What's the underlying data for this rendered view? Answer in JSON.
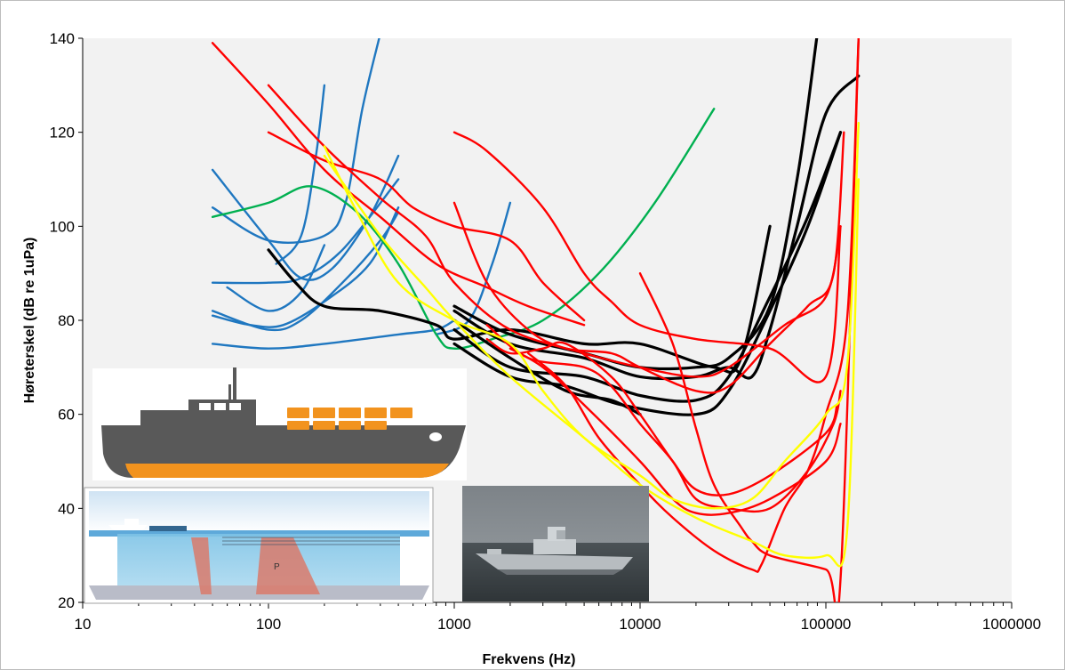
{
  "chart_data": {
    "type": "line",
    "title": "",
    "xlabel": "Frekvens (Hz)",
    "ylabel": "Høreterskel (dB re 1uPa)",
    "x_scale": "log",
    "xlim": [
      10,
      1000000
    ],
    "ylim": [
      20,
      140
    ],
    "grid": false,
    "legend": "none",
    "background": "#f2f2f2",
    "x_ticks": [
      {
        "value": 10,
        "label": "10"
      },
      {
        "value": 100,
        "label": "100"
      },
      {
        "value": 1000,
        "label": "1000"
      },
      {
        "value": 10000,
        "label": "10000"
      },
      {
        "value": 100000,
        "label": "100000"
      },
      {
        "value": 1000000,
        "label": "1000000"
      }
    ],
    "y_ticks": [
      {
        "value": 20,
        "label": "20"
      },
      {
        "value": 40,
        "label": "40"
      },
      {
        "value": 60,
        "label": "60"
      },
      {
        "value": 80,
        "label": "80"
      },
      {
        "value": 100,
        "label": "100"
      },
      {
        "value": 120,
        "label": "120"
      },
      {
        "value": 140,
        "label": "140"
      }
    ],
    "colors": {
      "black": "#000000",
      "red": "#ff0000",
      "blue": "#1f77c0",
      "green": "#00b050",
      "yellow": "#ffff00"
    },
    "series": [
      {
        "color": "blue",
        "points": [
          [
            50,
            75
          ],
          [
            100,
            74
          ],
          [
            200,
            75
          ],
          [
            500,
            77
          ],
          [
            800,
            78
          ],
          [
            1000,
            80
          ]
        ]
      },
      {
        "color": "blue",
        "points": [
          [
            50,
            81
          ],
          [
            80,
            79
          ],
          [
            120,
            79
          ],
          [
            200,
            84
          ],
          [
            350,
            92
          ],
          [
            500,
            104
          ]
        ]
      },
      {
        "color": "blue",
        "points": [
          [
            50,
            82
          ],
          [
            100,
            78
          ],
          [
            150,
            80
          ],
          [
            250,
            88
          ],
          [
            400,
            97
          ],
          [
            500,
            103
          ]
        ]
      },
      {
        "color": "blue",
        "points": [
          [
            50,
            88
          ],
          [
            100,
            88
          ],
          [
            150,
            89
          ],
          [
            250,
            95
          ],
          [
            500,
            110
          ]
        ]
      },
      {
        "color": "blue",
        "points": [
          [
            50,
            112
          ],
          [
            100,
            97
          ],
          [
            150,
            89
          ],
          [
            220,
            91
          ],
          [
            350,
            102
          ],
          [
            500,
            115
          ]
        ]
      },
      {
        "color": "blue",
        "points": [
          [
            50,
            104
          ],
          [
            100,
            97
          ],
          [
            200,
            98
          ],
          [
            260,
            105
          ],
          [
            320,
            125
          ],
          [
            400,
            141
          ]
        ]
      },
      {
        "color": "blue",
        "points": [
          [
            60,
            87
          ],
          [
            100,
            82
          ],
          [
            150,
            86
          ],
          [
            200,
            96
          ]
        ]
      },
      {
        "color": "blue",
        "points": [
          [
            110,
            92
          ],
          [
            150,
            98
          ],
          [
            180,
            115
          ],
          [
            200,
            130
          ]
        ]
      },
      {
        "color": "blue",
        "points": [
          [
            800,
            77
          ],
          [
            1200,
            80
          ],
          [
            1600,
            92
          ],
          [
            2000,
            105
          ]
        ]
      },
      {
        "color": "green",
        "points": [
          [
            50,
            102
          ],
          [
            100,
            105
          ],
          [
            170,
            108.5
          ],
          [
            300,
            103
          ],
          [
            500,
            92
          ],
          [
            800,
            77
          ],
          [
            1000,
            74
          ],
          [
            1600,
            76
          ],
          [
            3000,
            80
          ],
          [
            6000,
            90
          ],
          [
            12000,
            105
          ],
          [
            25000,
            125
          ]
        ]
      },
      {
        "color": "black",
        "points": [
          [
            100,
            95
          ],
          [
            140,
            88
          ],
          [
            200,
            83
          ],
          [
            400,
            82
          ],
          [
            800,
            79
          ],
          [
            1000,
            76
          ],
          [
            2000,
            78
          ],
          [
            5000,
            75
          ],
          [
            10000,
            75
          ],
          [
            25000,
            70
          ],
          [
            35000,
            72
          ],
          [
            50000,
            100
          ]
        ]
      },
      {
        "color": "black",
        "points": [
          [
            1000,
            83
          ],
          [
            2000,
            77
          ],
          [
            5000,
            73
          ],
          [
            10000,
            70
          ],
          [
            20000,
            70
          ],
          [
            30000,
            72
          ],
          [
            50000,
            83
          ],
          [
            70000,
            110
          ],
          [
            90000,
            141
          ]
        ]
      },
      {
        "color": "black",
        "points": [
          [
            1000,
            82
          ],
          [
            2000,
            75
          ],
          [
            5000,
            72
          ],
          [
            10000,
            68
          ],
          [
            20000,
            68
          ],
          [
            30000,
            70
          ],
          [
            40000,
            68
          ],
          [
            50000,
            78
          ],
          [
            70000,
            100
          ],
          [
            100000,
            124
          ],
          [
            150000,
            132
          ]
        ]
      },
      {
        "color": "black",
        "points": [
          [
            1000,
            78
          ],
          [
            2000,
            70
          ],
          [
            5000,
            68
          ],
          [
            10000,
            64
          ],
          [
            20000,
            63
          ],
          [
            30000,
            68
          ],
          [
            50000,
            85
          ],
          [
            80000,
            102
          ],
          [
            120000,
            120
          ]
        ]
      },
      {
        "color": "black",
        "points": [
          [
            1000,
            75
          ],
          [
            2000,
            68
          ],
          [
            4000,
            66
          ],
          [
            8000,
            62
          ],
          [
            20000,
            60
          ],
          [
            30000,
            65
          ],
          [
            50000,
            82
          ],
          [
            80000,
            100
          ],
          [
            120000,
            120
          ]
        ]
      },
      {
        "color": "black",
        "points": [
          [
            1000,
            80
          ],
          [
            2000,
            72
          ],
          [
            4000,
            65
          ],
          [
            7000,
            63
          ],
          [
            10000,
            60
          ]
        ]
      },
      {
        "color": "red",
        "points": [
          [
            50,
            139
          ],
          [
            100,
            126
          ],
          [
            200,
            112
          ],
          [
            400,
            102
          ],
          [
            800,
            92
          ],
          [
            1500,
            87
          ],
          [
            2500,
            83
          ],
          [
            5000,
            79
          ]
        ]
      },
      {
        "color": "red",
        "points": [
          [
            100,
            120
          ],
          [
            200,
            114
          ],
          [
            400,
            110
          ],
          [
            600,
            104
          ],
          [
            1000,
            100
          ],
          [
            2000,
            97
          ],
          [
            3000,
            88
          ],
          [
            5000,
            80
          ]
        ]
      },
      {
        "color": "red",
        "points": [
          [
            100,
            130
          ],
          [
            200,
            117
          ],
          [
            400,
            106
          ],
          [
            700,
            98
          ],
          [
            1000,
            88
          ],
          [
            2000,
            78
          ],
          [
            5000,
            73
          ],
          [
            10000,
            70
          ],
          [
            20000,
            68
          ],
          [
            30000,
            70
          ],
          [
            60000,
            79
          ],
          [
            100000,
            85
          ],
          [
            120000,
            100
          ]
        ]
      },
      {
        "color": "red",
        "points": [
          [
            1000,
            120
          ],
          [
            1500,
            116
          ],
          [
            3000,
            104
          ],
          [
            5000,
            90
          ],
          [
            7000,
            84
          ],
          [
            10000,
            79
          ],
          [
            20000,
            76
          ],
          [
            50000,
            74
          ],
          [
            100000,
            68
          ],
          [
            120000,
            100
          ]
        ]
      },
      {
        "color": "red",
        "points": [
          [
            1000,
            105
          ],
          [
            1500,
            88
          ],
          [
            2500,
            78
          ],
          [
            4000,
            74
          ],
          [
            7000,
            73
          ],
          [
            10000,
            70
          ],
          [
            20000,
            65
          ],
          [
            30000,
            66
          ],
          [
            50000,
            75
          ],
          [
            80000,
            83
          ],
          [
            110000,
            90
          ],
          [
            125000,
            120
          ]
        ]
      },
      {
        "color": "red",
        "points": [
          [
            1500,
            79
          ],
          [
            2500,
            72
          ],
          [
            5000,
            70
          ],
          [
            7000,
            66
          ],
          [
            10000,
            58
          ],
          [
            15000,
            50
          ],
          [
            20000,
            42
          ],
          [
            30000,
            40
          ],
          [
            50000,
            40
          ],
          [
            80000,
            48
          ],
          [
            110000,
            58
          ],
          [
            120000,
            65
          ]
        ]
      },
      {
        "color": "red",
        "points": [
          [
            1500,
            76
          ],
          [
            2000,
            73
          ],
          [
            3000,
            74
          ],
          [
            4000,
            75
          ],
          [
            7000,
            68
          ],
          [
            10000,
            60
          ],
          [
            15000,
            50
          ],
          [
            20000,
            44
          ],
          [
            30000,
            43
          ],
          [
            50000,
            47
          ],
          [
            100000,
            56
          ],
          [
            115000,
            62
          ]
        ]
      },
      {
        "color": "red",
        "points": [
          [
            2000,
            74
          ],
          [
            3000,
            70
          ],
          [
            5000,
            62
          ],
          [
            10000,
            50
          ],
          [
            15000,
            42
          ],
          [
            20000,
            39
          ],
          [
            30000,
            39
          ],
          [
            50000,
            42
          ],
          [
            100000,
            50
          ],
          [
            120000,
            58
          ]
        ]
      },
      {
        "color": "red",
        "points": [
          [
            10000,
            90
          ],
          [
            15000,
            75
          ],
          [
            20000,
            57
          ],
          [
            25000,
            45
          ],
          [
            35000,
            36
          ],
          [
            40000,
            33
          ],
          [
            50000,
            30
          ],
          [
            100000,
            27
          ],
          [
            120000,
            25
          ],
          [
            150000,
            140
          ]
        ]
      },
      {
        "color": "red",
        "points": [
          [
            2500,
            73
          ],
          [
            4000,
            66
          ],
          [
            6000,
            55
          ],
          [
            10000,
            45
          ],
          [
            15000,
            38
          ],
          [
            25000,
            31
          ],
          [
            40000,
            27
          ],
          [
            45000,
            28
          ],
          [
            60000,
            40
          ],
          [
            80000,
            48
          ],
          [
            100000,
            60
          ],
          [
            130000,
            80
          ],
          [
            150000,
            140
          ]
        ]
      },
      {
        "color": "yellow",
        "points": [
          [
            200,
            117
          ],
          [
            300,
            103
          ],
          [
            500,
            88
          ],
          [
            1000,
            80
          ],
          [
            2000,
            75
          ],
          [
            3000,
            65
          ],
          [
            5000,
            55
          ],
          [
            10000,
            47
          ],
          [
            15000,
            42
          ],
          [
            25000,
            40
          ],
          [
            40000,
            42
          ],
          [
            60000,
            50
          ],
          [
            100000,
            60
          ],
          [
            130000,
            70
          ],
          [
            150000,
            122
          ]
        ]
      },
      {
        "color": "yellow",
        "points": [
          [
            200,
            115
          ],
          [
            400,
            98
          ],
          [
            700,
            87
          ],
          [
            1000,
            80
          ],
          [
            2000,
            68
          ],
          [
            5000,
            55
          ],
          [
            10000,
            45
          ],
          [
            20000,
            38
          ],
          [
            40000,
            33
          ],
          [
            60000,
            30
          ],
          [
            100000,
            30
          ],
          [
            130000,
            35
          ],
          [
            150000,
            110
          ]
        ]
      }
    ]
  }
}
